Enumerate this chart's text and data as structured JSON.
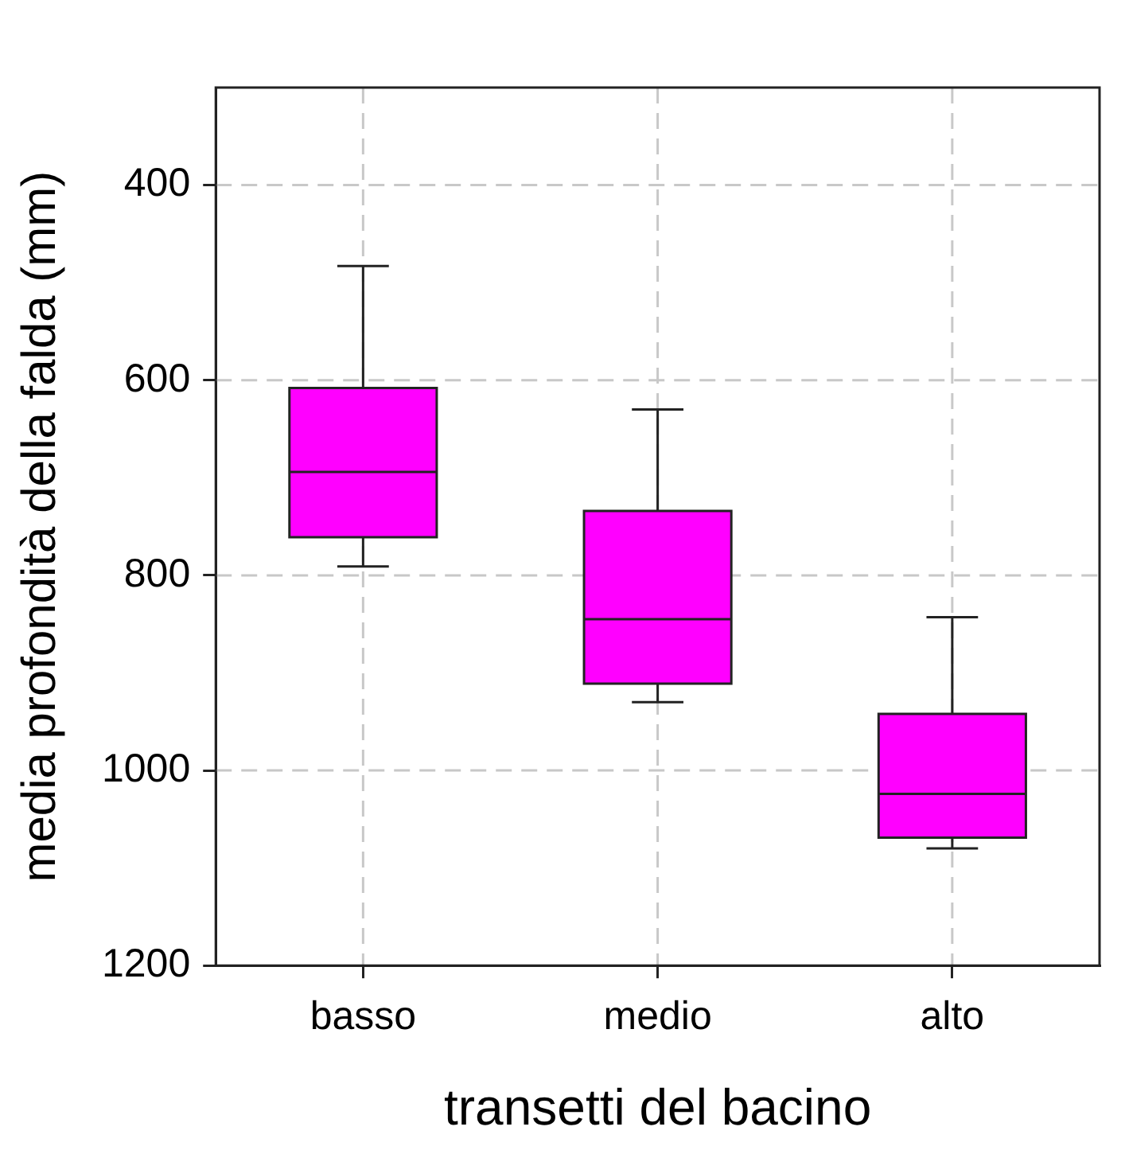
{
  "chart_data": {
    "type": "box",
    "xlabel": "transetti del bacino",
    "ylabel": "media profondità della falda (mm)",
    "categories": [
      "basso",
      "medio",
      "alto"
    ],
    "color": "#ff00ff",
    "boxes": [
      {
        "low": 483,
        "q1": 608,
        "median": 694,
        "q3": 761,
        "high": 791
      },
      {
        "low": 630,
        "q1": 734,
        "median": 845,
        "q3": 911,
        "high": 930
      },
      {
        "low": 843,
        "q1": 942,
        "median": 1024,
        "q3": 1069,
        "high": 1080
      }
    ],
    "ylim": [
      1200,
      300
    ],
    "yticks": [
      400,
      600,
      800,
      1000,
      1200
    ],
    "grid": true,
    "legend": false
  }
}
